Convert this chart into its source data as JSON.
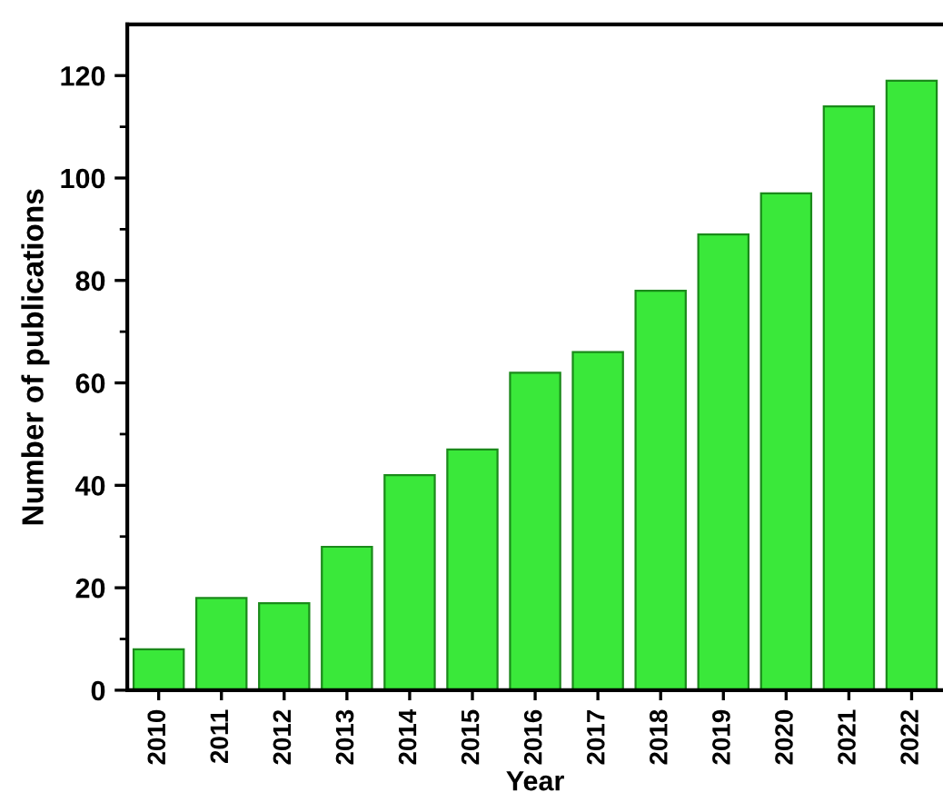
{
  "chart_data": {
    "type": "bar",
    "xlabel": "Year",
    "ylabel": "Number of publications",
    "categories": [
      "2010",
      "2011",
      "2012",
      "2013",
      "2014",
      "2015",
      "2016",
      "2017",
      "2018",
      "2019",
      "2020",
      "2021",
      "2022"
    ],
    "values": [
      8,
      18,
      17,
      28,
      42,
      47,
      62,
      66,
      78,
      89,
      97,
      114,
      119
    ],
    "color": "#3ae83a",
    "ylim": [
      0,
      130
    ],
    "yticks": [
      0,
      {
        "value": 10,
        "label": null
      },
      20,
      {
        "value": 30,
        "label": null
      },
      40,
      {
        "value": 50,
        "label": null
      },
      60,
      {
        "value": 70,
        "label": null
      },
      80,
      {
        "value": 90,
        "label": null
      },
      100,
      {
        "value": 110,
        "label": null
      },
      120
    ],
    "grid": false,
    "legend": false
  }
}
